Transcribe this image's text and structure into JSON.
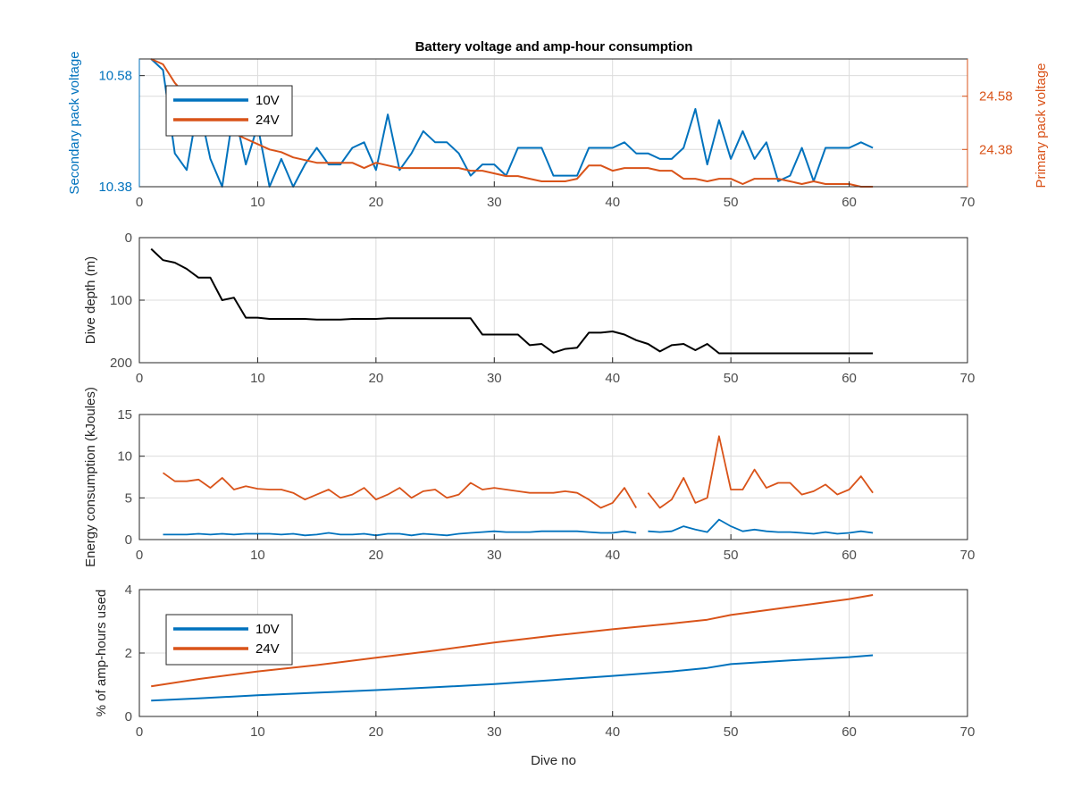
{
  "figure_title": "Battery voltage and amp-hour consumption",
  "colors": {
    "v10": "#0072BD",
    "v24": "#D95319",
    "depth": "#000000",
    "grid": "#dcdcdc",
    "axis": "#262626",
    "tick_text": "#4d4d4d"
  },
  "chart_data": [
    {
      "type": "line",
      "title": "Battery voltage and amp-hour consumption",
      "xlabel": "",
      "ylabel": "Secondary pack voltage",
      "ylabel_right": "Primary pack voltage",
      "xlim": [
        0,
        70
      ],
      "ylim": [
        10.38,
        10.61
      ],
      "ylim_right": [
        24.24,
        24.72
      ],
      "xticks": [
        0,
        10,
        20,
        30,
        40,
        50,
        60,
        70
      ],
      "yticks": [
        10.38,
        10.58
      ],
      "yticks_right": [
        24.38,
        24.58
      ],
      "grid": true,
      "legend": {
        "position": "top-left",
        "entries": [
          "10V",
          "24V"
        ]
      },
      "series": [
        {
          "name": "10V",
          "axis": "left",
          "x": [
            1,
            2,
            3,
            4,
            5,
            6,
            7,
            8,
            9,
            10,
            11,
            12,
            13,
            14,
            15,
            16,
            17,
            18,
            19,
            20,
            21,
            22,
            23,
            24,
            25,
            26,
            27,
            28,
            29,
            30,
            31,
            32,
            33,
            34,
            35,
            36,
            37,
            38,
            39,
            40,
            41,
            42,
            43,
            44,
            45,
            46,
            47,
            48,
            49,
            50,
            51,
            52,
            53,
            54,
            55,
            56,
            57,
            58,
            59,
            60,
            61,
            62
          ],
          "y": [
            10.61,
            10.59,
            10.44,
            10.41,
            10.53,
            10.43,
            10.38,
            10.52,
            10.42,
            10.49,
            10.38,
            10.43,
            10.38,
            10.42,
            10.45,
            10.42,
            10.42,
            10.45,
            10.46,
            10.41,
            10.51,
            10.41,
            10.44,
            10.48,
            10.46,
            10.46,
            10.44,
            10.4,
            10.42,
            10.42,
            10.4,
            10.45,
            10.45,
            10.45,
            10.4,
            10.4,
            10.4,
            10.45,
            10.45,
            10.45,
            10.46,
            10.44,
            10.44,
            10.43,
            10.43,
            10.45,
            10.52,
            10.42,
            10.5,
            10.43,
            10.48,
            10.43,
            10.46,
            10.39,
            10.4,
            10.45,
            10.39,
            10.45,
            10.45,
            10.45,
            10.46,
            10.45
          ]
        },
        {
          "name": "24V",
          "axis": "right",
          "x": [
            1,
            2,
            3,
            4,
            5,
            6,
            7,
            8,
            9,
            10,
            11,
            12,
            13,
            14,
            15,
            16,
            17,
            18,
            19,
            20,
            21,
            22,
            23,
            24,
            25,
            26,
            27,
            28,
            29,
            30,
            31,
            32,
            33,
            34,
            35,
            36,
            37,
            38,
            39,
            40,
            41,
            42,
            43,
            44,
            45,
            46,
            47,
            48,
            49,
            50,
            51,
            52,
            53,
            54,
            55,
            56,
            57,
            58,
            59,
            60,
            61,
            62
          ],
          "y": [
            24.72,
            24.7,
            24.63,
            24.58,
            24.54,
            24.5,
            24.47,
            24.44,
            24.42,
            24.4,
            24.38,
            24.37,
            24.35,
            24.34,
            24.33,
            24.33,
            24.33,
            24.33,
            24.31,
            24.33,
            24.32,
            24.31,
            24.31,
            24.31,
            24.31,
            24.31,
            24.31,
            24.3,
            24.3,
            24.29,
            24.28,
            24.28,
            24.27,
            24.26,
            24.26,
            24.26,
            24.27,
            24.32,
            24.32,
            24.3,
            24.31,
            24.31,
            24.31,
            24.3,
            24.3,
            24.27,
            24.27,
            24.26,
            24.27,
            24.27,
            24.25,
            24.27,
            24.27,
            24.27,
            24.26,
            24.25,
            24.26,
            24.25,
            24.25,
            24.25,
            24.24,
            24.24
          ]
        }
      ]
    },
    {
      "type": "line",
      "xlabel": "",
      "ylabel": "Dive depth (m)",
      "xlim": [
        0,
        70
      ],
      "ylim": [
        200,
        0
      ],
      "y_reversed": true,
      "xticks": [
        0,
        10,
        20,
        30,
        40,
        50,
        60,
        70
      ],
      "yticks": [
        0,
        100,
        200
      ],
      "grid": true,
      "series": [
        {
          "name": "",
          "x": [
            1,
            2,
            3,
            4,
            5,
            6,
            7,
            8,
            9,
            10,
            11,
            12,
            13,
            14,
            15,
            16,
            17,
            18,
            19,
            20,
            21,
            22,
            23,
            24,
            25,
            26,
            27,
            28,
            29,
            30,
            31,
            32,
            33,
            34,
            35,
            36,
            37,
            38,
            39,
            40,
            41,
            42,
            43,
            44,
            45,
            46,
            47,
            48,
            49,
            50,
            51,
            52,
            53,
            54,
            55,
            56,
            57,
            58,
            59,
            60,
            61,
            62
          ],
          "y": [
            18,
            36,
            40,
            50,
            64,
            64,
            100,
            96,
            128,
            128,
            130,
            130,
            130,
            130,
            131,
            131,
            131,
            130,
            130,
            130,
            129,
            129,
            129,
            129,
            129,
            129,
            129,
            129,
            155,
            155,
            155,
            155,
            172,
            170,
            184,
            178,
            176,
            152,
            152,
            150,
            155,
            164,
            170,
            182,
            172,
            170,
            180,
            170,
            185,
            185,
            185,
            185,
            185,
            185,
            185,
            185,
            185,
            185,
            185,
            185,
            185,
            185
          ]
        }
      ]
    },
    {
      "type": "line",
      "xlabel": "",
      "ylabel": "Energy consumption (kJoules)",
      "xlim": [
        0,
        70
      ],
      "ylim": [
        0,
        15
      ],
      "xticks": [
        0,
        10,
        20,
        30,
        40,
        50,
        60,
        70
      ],
      "yticks": [
        0,
        5,
        10,
        15
      ],
      "grid": true,
      "series": [
        {
          "name": "24V",
          "x": [
            2,
            3,
            4,
            5,
            6,
            7,
            8,
            9,
            10,
            11,
            12,
            13,
            14,
            15,
            16,
            17,
            18,
            19,
            20,
            21,
            22,
            23,
            24,
            25,
            26,
            27,
            28,
            29,
            30,
            31,
            32,
            33,
            34,
            35,
            36,
            37,
            38,
            39,
            40,
            41,
            42,
            null,
            43,
            44,
            45,
            46,
            47,
            48,
            49,
            50,
            51,
            52,
            53,
            54,
            55,
            56,
            57,
            58,
            59,
            60,
            61,
            62
          ],
          "y": [
            8,
            7,
            7,
            7.2,
            6.2,
            7.4,
            6,
            6.4,
            6.1,
            6,
            6,
            5.6,
            4.8,
            5.4,
            6,
            5,
            5.4,
            6.2,
            4.8,
            5.4,
            6.2,
            5,
            5.8,
            6,
            5,
            5.4,
            6.8,
            6,
            6.2,
            6,
            5.8,
            5.6,
            5.6,
            5.6,
            5.8,
            5.6,
            4.8,
            3.8,
            4.4,
            6.2,
            3.8,
            null,
            5.6,
            3.8,
            4.8,
            7.4,
            4.4,
            5,
            12.4,
            6,
            6,
            8.4,
            6.2,
            6.8,
            6.8,
            5.4,
            5.8,
            6.6,
            5.4,
            6,
            7.6,
            5.6
          ]
        },
        {
          "name": "10V",
          "x": [
            2,
            3,
            4,
            5,
            6,
            7,
            8,
            9,
            10,
            11,
            12,
            13,
            14,
            15,
            16,
            17,
            18,
            19,
            20,
            21,
            22,
            23,
            24,
            25,
            26,
            27,
            28,
            29,
            30,
            31,
            32,
            33,
            34,
            35,
            36,
            37,
            38,
            39,
            40,
            41,
            42,
            null,
            43,
            44,
            45,
            46,
            47,
            48,
            49,
            50,
            51,
            52,
            53,
            54,
            55,
            56,
            57,
            58,
            59,
            60,
            61,
            62
          ],
          "y": [
            0.6,
            0.6,
            0.6,
            0.7,
            0.6,
            0.7,
            0.6,
            0.7,
            0.7,
            0.7,
            0.6,
            0.7,
            0.5,
            0.6,
            0.8,
            0.6,
            0.6,
            0.7,
            0.5,
            0.7,
            0.7,
            0.5,
            0.7,
            0.6,
            0.5,
            0.7,
            0.8,
            0.9,
            1,
            0.9,
            0.9,
            0.9,
            1,
            1,
            1,
            1,
            0.9,
            0.8,
            0.8,
            1,
            0.8,
            null,
            1,
            0.9,
            1,
            1.6,
            1.2,
            0.9,
            2.4,
            1.6,
            1,
            1.2,
            1,
            0.9,
            0.9,
            0.8,
            0.7,
            0.9,
            0.7,
            0.8,
            1,
            0.8
          ]
        }
      ]
    },
    {
      "type": "line",
      "xlabel": "Dive no",
      "ylabel": "% of amp-hours used",
      "xlim": [
        0,
        70
      ],
      "ylim": [
        0,
        4
      ],
      "xticks": [
        0,
        10,
        20,
        30,
        40,
        50,
        60,
        70
      ],
      "yticks": [
        0,
        2,
        4
      ],
      "grid": true,
      "legend": {
        "position": "top-left",
        "entries": [
          "10V",
          "24V"
        ]
      },
      "series": [
        {
          "name": "10V",
          "x": [
            1,
            5,
            10,
            15,
            20,
            25,
            30,
            35,
            40,
            45,
            48,
            50,
            55,
            60,
            62
          ],
          "y": [
            0.5,
            0.57,
            0.67,
            0.75,
            0.83,
            0.92,
            1.02,
            1.15,
            1.28,
            1.42,
            1.53,
            1.65,
            1.77,
            1.87,
            1.93
          ]
        },
        {
          "name": "24V",
          "x": [
            1,
            5,
            10,
            15,
            20,
            25,
            30,
            35,
            40,
            45,
            48,
            50,
            55,
            60,
            62
          ],
          "y": [
            0.95,
            1.18,
            1.42,
            1.62,
            1.85,
            2.08,
            2.33,
            2.55,
            2.75,
            2.93,
            3.05,
            3.2,
            3.45,
            3.7,
            3.83
          ]
        }
      ]
    }
  ]
}
